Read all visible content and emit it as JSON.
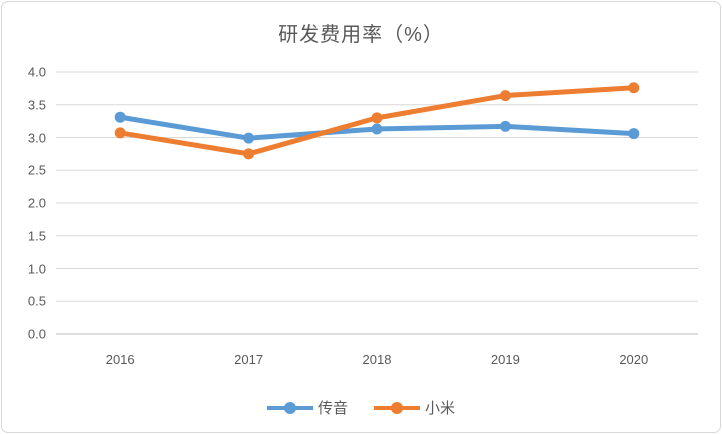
{
  "chart": {
    "title": "研发费用率（%）"
  },
  "chart_data": {
    "type": "line",
    "title": "研发费用率（%）",
    "categories": [
      "2016",
      "2017",
      "2018",
      "2019",
      "2020"
    ],
    "series": [
      {
        "name": "传音",
        "color": "#5B9BD5",
        "values": [
          3.31,
          2.99,
          3.13,
          3.17,
          3.06
        ]
      },
      {
        "name": "小米",
        "color": "#ED7D31",
        "values": [
          3.07,
          2.75,
          3.3,
          3.64,
          3.76
        ]
      }
    ],
    "xlabel": "",
    "ylabel": "",
    "ylim": [
      0,
      4
    ],
    "y_tick_step": 0.5,
    "y_tick_labels": [
      "0.0",
      "0.5",
      "1.0",
      "1.5",
      "2.0",
      "2.5",
      "3.0",
      "3.5",
      "4.0"
    ],
    "grid": true,
    "gridline_color": "#D9D9D9",
    "axis_line_color": "#BFBFBF",
    "text_color": "#595959",
    "legend_position": "bottom",
    "marker": "circle"
  }
}
